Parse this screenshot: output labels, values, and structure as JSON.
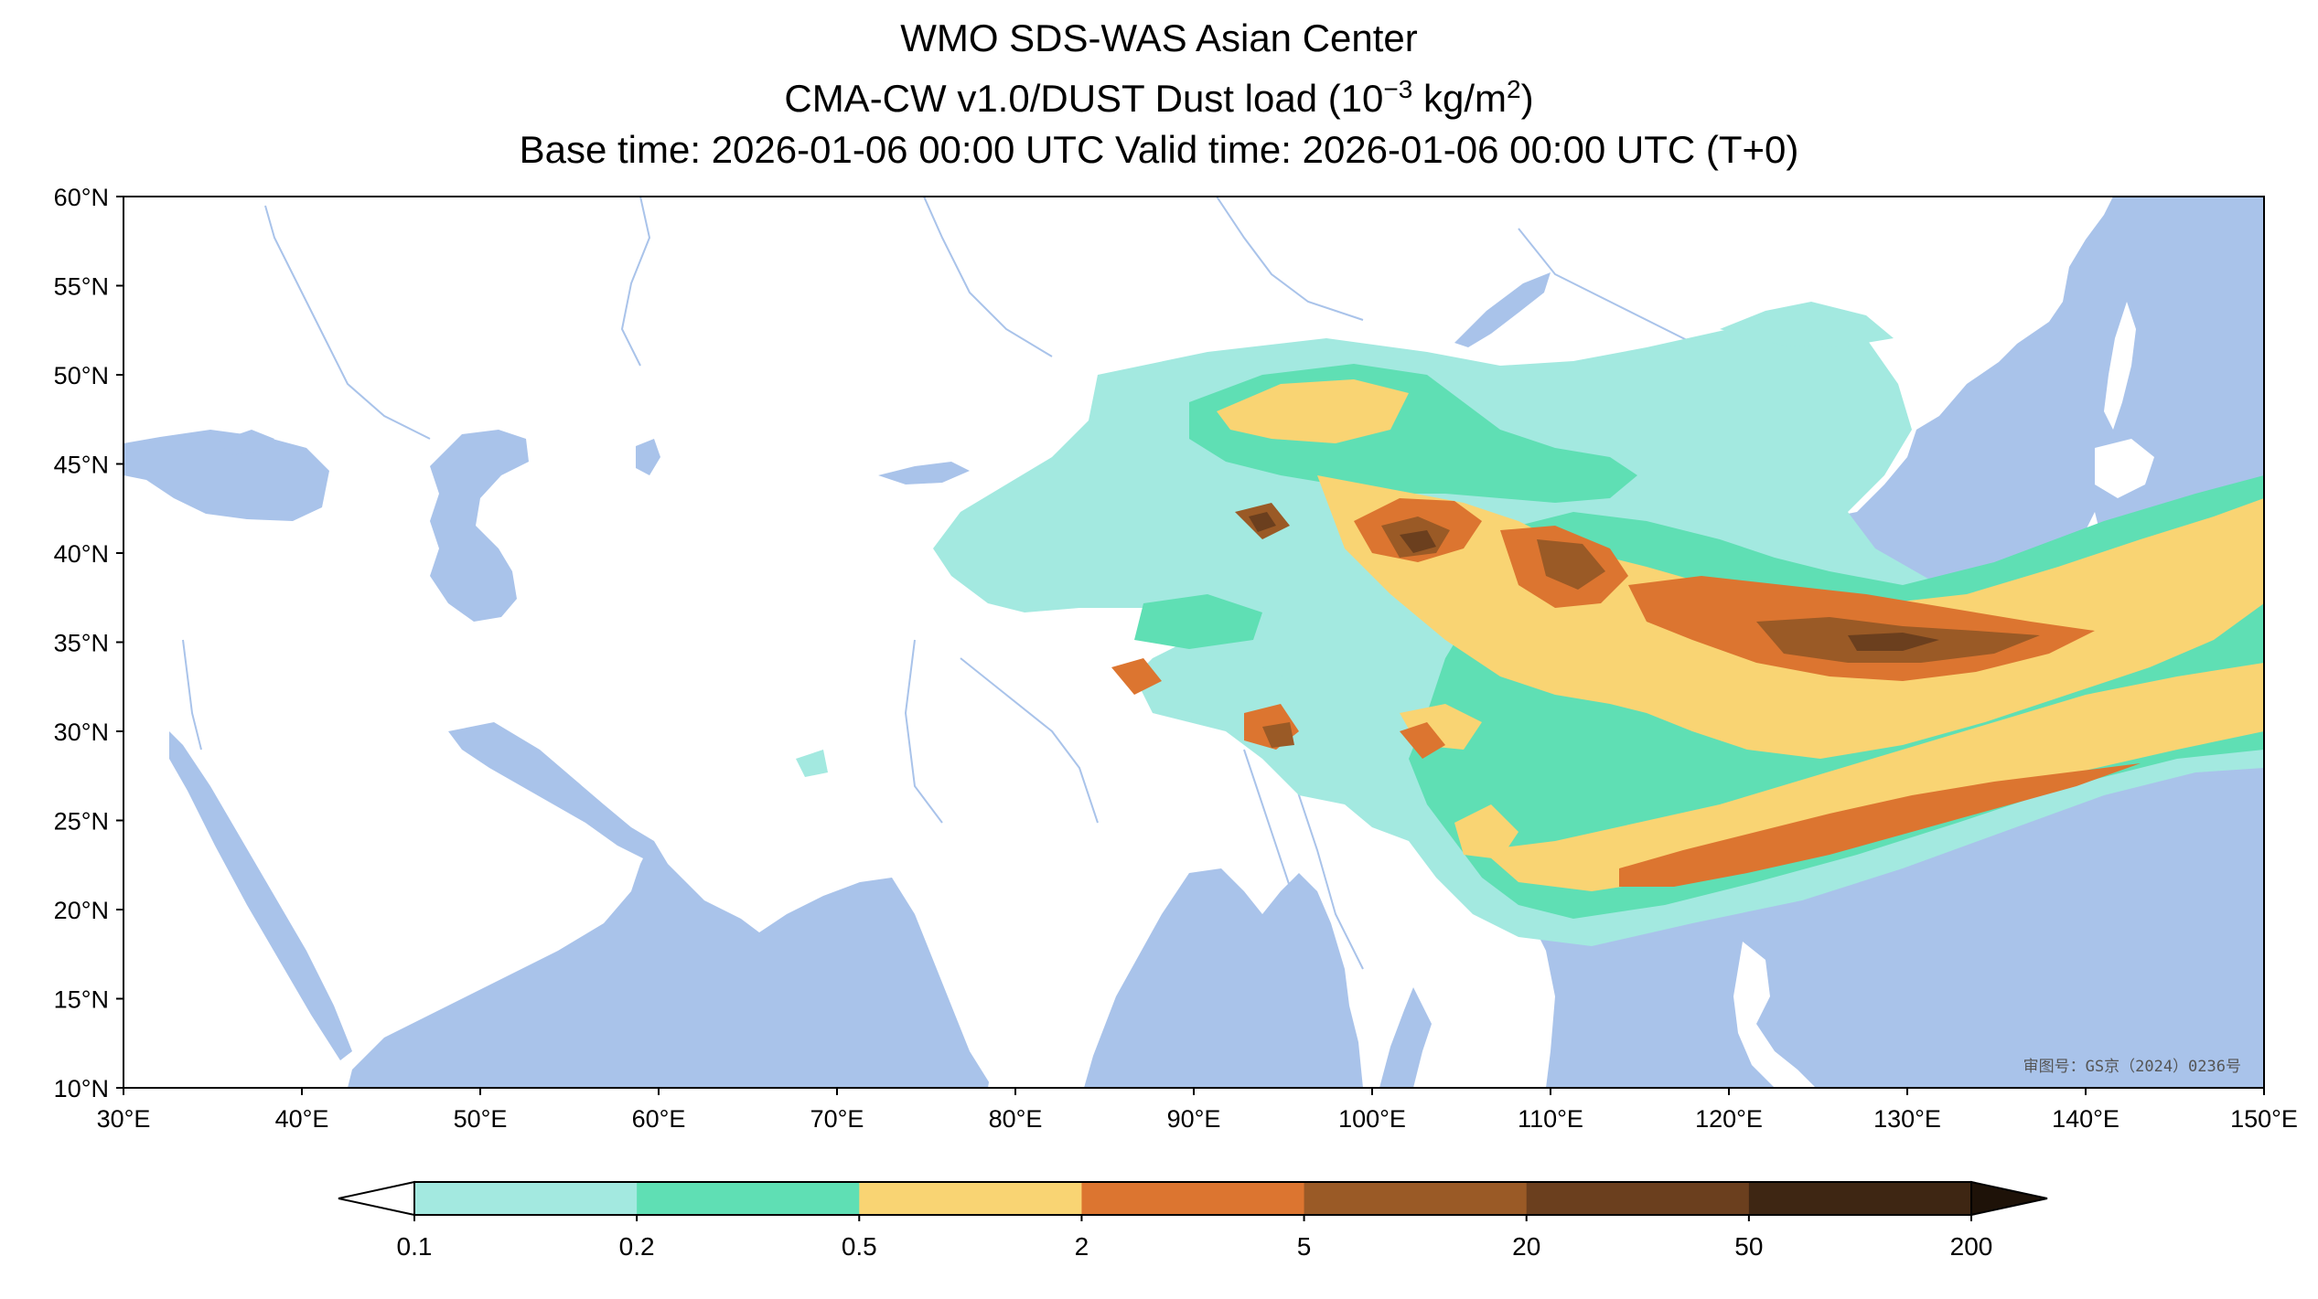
{
  "title": {
    "line1": "WMO SDS-WAS Asian Center",
    "line2_prefix": "CMA-CW v1.0/DUST Dust load (10",
    "line2_exp": "−3",
    "line2_mid": " kg/m",
    "line2_exp2": "2",
    "line2_suffix": ")",
    "line3": "Base time: 2026-01-06 00:00 UTC Valid time: 2026-01-06 00:00 UTC (T+0)"
  },
  "map": {
    "lon_range": [
      30,
      150
    ],
    "lat_range": [
      10,
      60
    ],
    "lon_ticks": [
      "30°E",
      "40°E",
      "50°E",
      "60°E",
      "70°E",
      "80°E",
      "90°E",
      "100°E",
      "110°E",
      "120°E",
      "130°E",
      "140°E",
      "150°E"
    ],
    "lat_ticks": [
      "60°N",
      "55°N",
      "50°N",
      "45°N",
      "40°N",
      "35°N",
      "30°N",
      "25°N",
      "20°N",
      "15°N",
      "10°N"
    ],
    "ocean_color": "#a9c3ea",
    "land_color": "#ffffff",
    "border_color": "#000000",
    "river_color": "#a9c3ea",
    "approval_text": "审图号：GS京（2024）0236号"
  },
  "colorbar": {
    "labels": [
      "0.1",
      "0.2",
      "0.5",
      "2",
      "5",
      "20",
      "50",
      "200"
    ],
    "colors": [
      "#a3e9e0",
      "#5fdfb4",
      "#f9d473",
      "#dc7530",
      "#9a5a26",
      "#6b3f1e",
      "#3e2613"
    ],
    "extend_min_color": "#ffffff",
    "extend_max_color": "#1e1208"
  }
}
